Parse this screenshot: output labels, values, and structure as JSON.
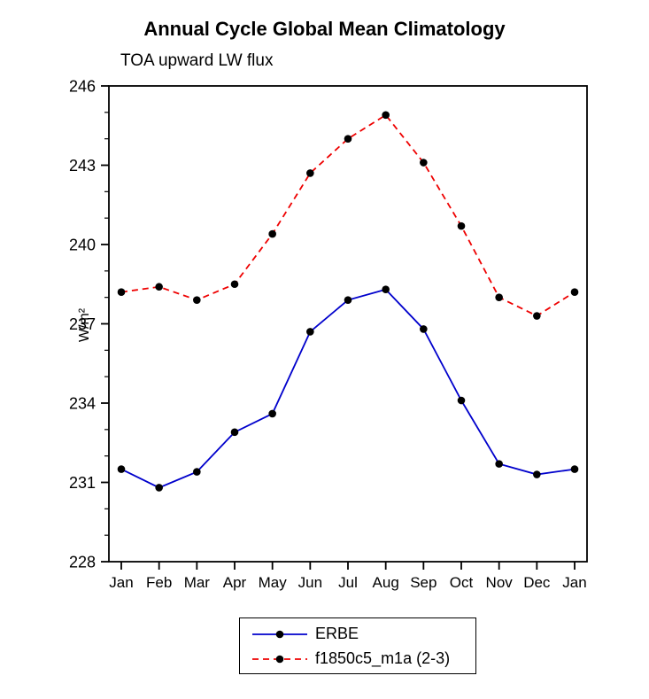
{
  "chart_data": {
    "type": "line",
    "title": "Annual Cycle Global Mean Climatology",
    "subtitle": "TOA upward LW flux",
    "ylabel": "W/m²",
    "categories": [
      "Jan",
      "Feb",
      "Mar",
      "Apr",
      "May",
      "Jun",
      "Jul",
      "Aug",
      "Sep",
      "Oct",
      "Nov",
      "Dec",
      "Jan"
    ],
    "ylim": [
      228,
      246
    ],
    "yticks": [
      228,
      231,
      234,
      237,
      240,
      243,
      246
    ],
    "grid": false,
    "legend_position": "bottom-center-boxed",
    "marker_color": "#000000",
    "series": [
      {
        "name": "ERBE",
        "color": "#0000cc",
        "style": "solid",
        "values": [
          231.5,
          230.8,
          231.4,
          232.9,
          233.6,
          236.7,
          237.9,
          238.3,
          236.8,
          234.1,
          231.7,
          231.3,
          231.5
        ]
      },
      {
        "name": "f1850c5_m1a (2-3)",
        "color": "#ee0000",
        "style": "dashed",
        "values": [
          238.2,
          238.4,
          237.9,
          238.5,
          240.4,
          242.7,
          244.0,
          244.9,
          243.1,
          240.7,
          238.0,
          237.3,
          238.2
        ]
      }
    ]
  }
}
